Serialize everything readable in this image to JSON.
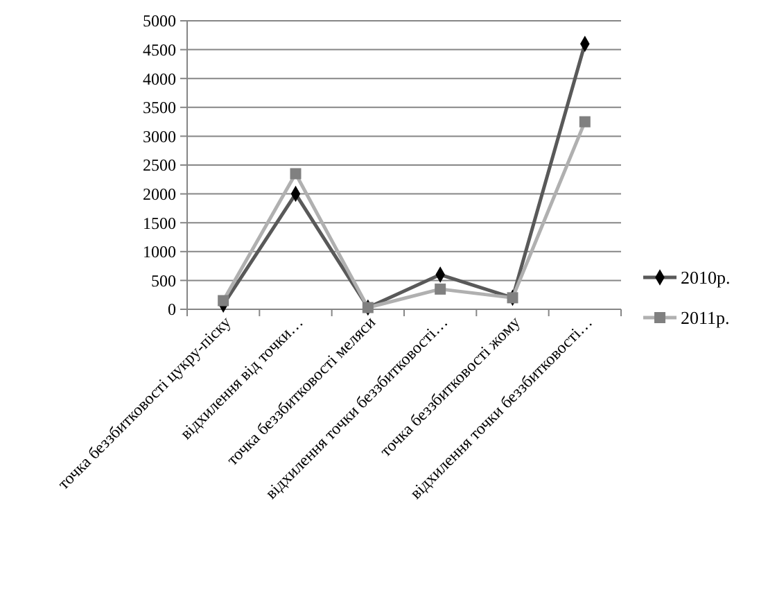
{
  "chart_data": {
    "type": "line",
    "categories": [
      "точка беззбитковості  цукру-піску",
      "відхилення від точки…",
      "точка беззбитковості меляси",
      "відхилення точки беззбитковості…",
      "точка беззбитковості жому",
      "відхилення точки беззбитковості…"
    ],
    "series": [
      {
        "name": "2010р.",
        "color": "#595959",
        "marker": "diamond",
        "values": [
          80,
          2000,
          30,
          600,
          200,
          4600
        ]
      },
      {
        "name": "2011р.",
        "color": "#b0b0b0",
        "marker": "square",
        "values": [
          150,
          2350,
          30,
          350,
          200,
          3250
        ]
      }
    ],
    "ylim": [
      0,
      5000
    ],
    "yticks": [
      0,
      500,
      1000,
      1500,
      2000,
      2500,
      3000,
      3500,
      4000,
      4500,
      5000
    ],
    "grid": "y",
    "legend": "right"
  }
}
